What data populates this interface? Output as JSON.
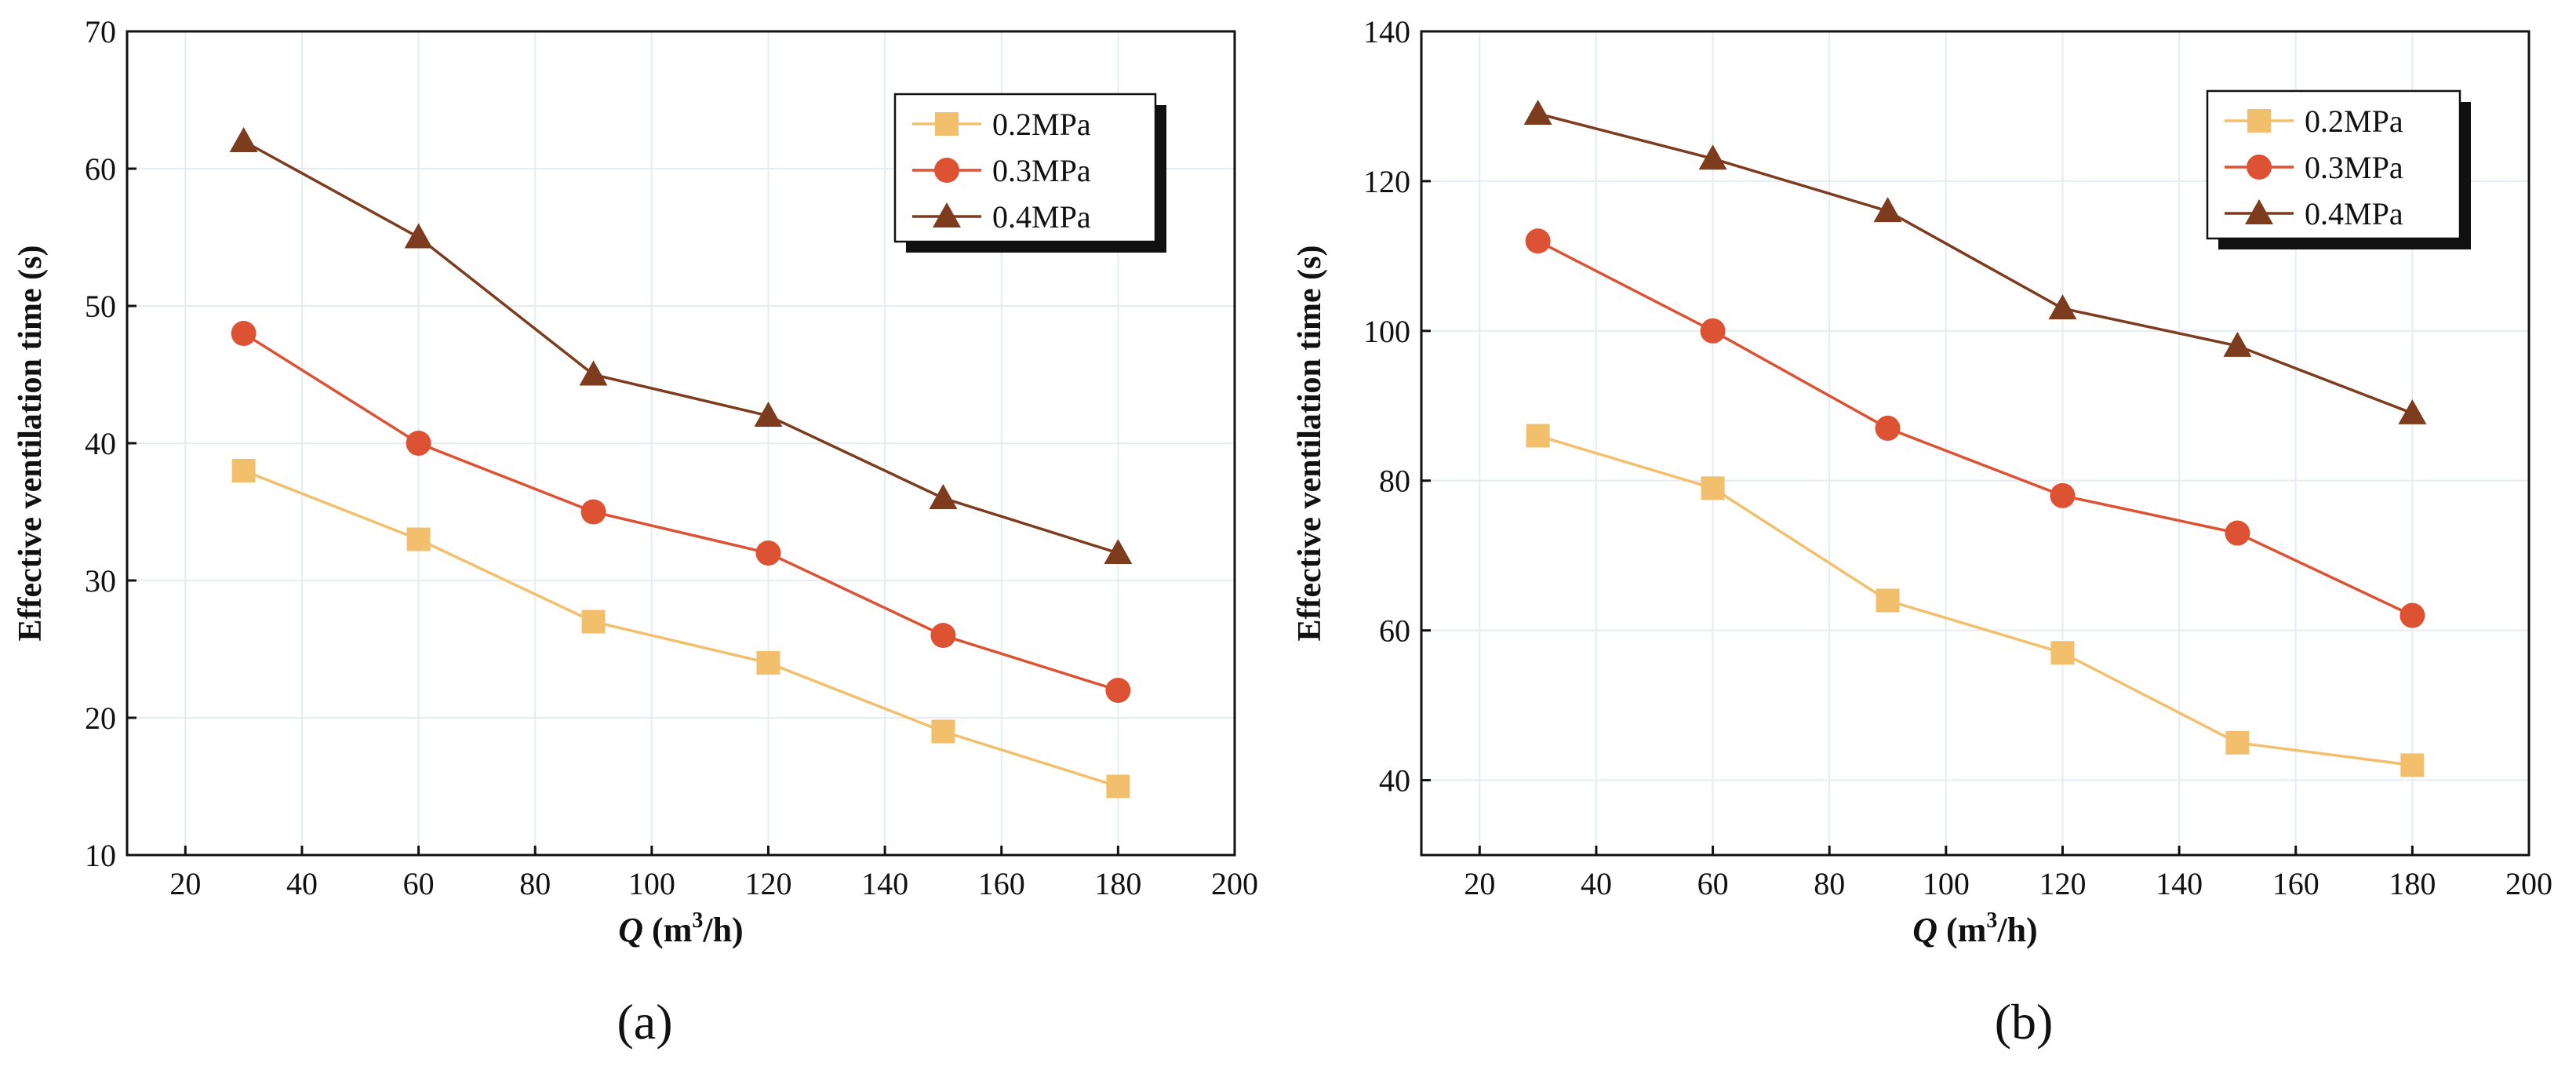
{
  "chart_data": [
    {
      "type": "line",
      "panel_label": "(a)",
      "xlabel_var": "Q",
      "xlabel_unit_pre": " (m",
      "xlabel_unit_sup": "3",
      "xlabel_unit_post": "/h)",
      "ylabel": "Effective ventilation time (s)",
      "xlim": [
        10,
        200
      ],
      "ylim": [
        10,
        70
      ],
      "xticks": [
        20,
        40,
        60,
        80,
        100,
        120,
        140,
        160,
        180,
        200
      ],
      "yticks": [
        10,
        20,
        30,
        40,
        50,
        60,
        70
      ],
      "grid": true,
      "legend_position": "top-right",
      "x": [
        30,
        60,
        90,
        120,
        150,
        180
      ],
      "series": [
        {
          "name": "0.2MPa",
          "marker": "square",
          "color": "#f2c06d",
          "values": [
            38,
            33,
            27,
            24,
            19,
            15
          ]
        },
        {
          "name": "0.3MPa",
          "marker": "circle",
          "color": "#dc5232",
          "values": [
            48,
            40,
            35,
            32,
            26,
            22
          ]
        },
        {
          "name": "0.4MPa",
          "marker": "triangle",
          "color": "#7e3c1f",
          "values": [
            62,
            55,
            45,
            42,
            36,
            32
          ]
        }
      ]
    },
    {
      "type": "line",
      "panel_label": "(b)",
      "xlabel_var": "Q",
      "xlabel_unit_pre": " (m",
      "xlabel_unit_sup": "3",
      "xlabel_unit_post": "/h)",
      "ylabel": "Effective ventilation time (s)",
      "xlim": [
        10,
        200
      ],
      "ylim": [
        30,
        140
      ],
      "xticks": [
        20,
        40,
        60,
        80,
        100,
        120,
        140,
        160,
        180,
        200
      ],
      "yticks": [
        40,
        60,
        80,
        100,
        120,
        140
      ],
      "grid": true,
      "legend_position": "top-right",
      "x": [
        30,
        60,
        90,
        120,
        150,
        180
      ],
      "series": [
        {
          "name": "0.2MPa",
          "marker": "square",
          "color": "#f2c06d",
          "values": [
            86,
            79,
            64,
            57,
            45,
            42
          ]
        },
        {
          "name": "0.3MPa",
          "marker": "circle",
          "color": "#dc5232",
          "values": [
            112,
            100,
            87,
            78,
            73,
            62
          ]
        },
        {
          "name": "0.4MPa",
          "marker": "triangle",
          "color": "#7e3c1f",
          "values": [
            129,
            123,
            116,
            103,
            98,
            89
          ]
        }
      ]
    }
  ]
}
